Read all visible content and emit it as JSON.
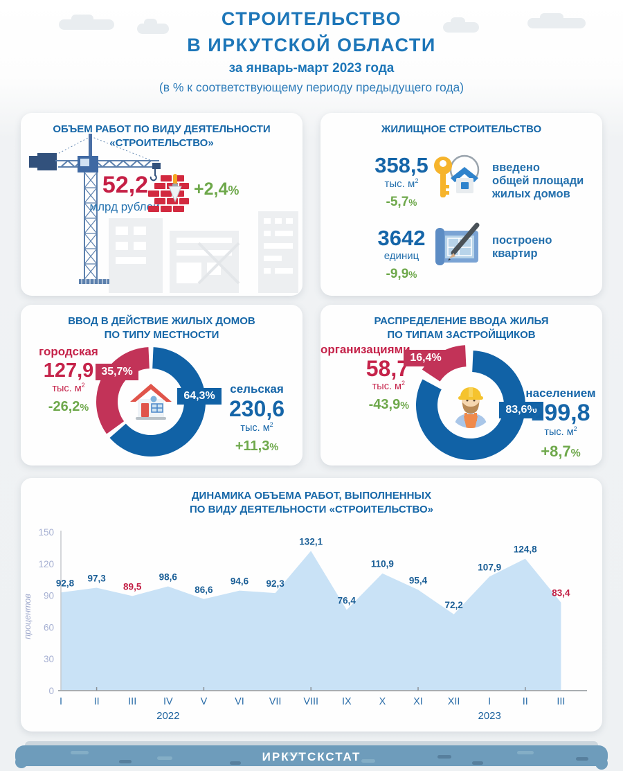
{
  "header": {
    "title_line1": "СТРОИТЕЛЬСТВО",
    "title_line2": "В ИРКУТСКОЙ ОБЛАСТИ",
    "subtitle": "за январь-март 2023 года",
    "note": "(в % к соответствующему периоду предыдущего года)"
  },
  "symbols": {
    "percent": "%"
  },
  "cards": {
    "volume": {
      "title_line1": "ОБЪЕМ РАБОТ ПО ВИДУ ДЕЯТЕЛЬНОСТИ",
      "title_line2": "«СТРОИТЕЛЬСТВО»",
      "value": "52,2",
      "unit": "млрд рублей",
      "change": "+2,4"
    },
    "housing": {
      "title": "ЖИЛИЩНОЕ СТРОИТЕЛЬСТВО",
      "rows": [
        {
          "value": "358,5",
          "unit": "тыс. м",
          "unit_sup": "2",
          "change": "-5,7",
          "label_line1": "введено",
          "label_line2": "общей площади",
          "label_line3": "жилых домов",
          "icon": "key-house-icon"
        },
        {
          "value": "3642",
          "unit": "единиц",
          "change": "-9,9",
          "label_line1": "построено",
          "label_line2": "квартир",
          "icon": "blueprint-pencil-icon"
        }
      ]
    }
  },
  "chart_data": [
    {
      "type": "pie",
      "subtype": "donut",
      "title_line1": "ВВОД В ДЕЙСТВИЕ ЖИЛЫХ ДОМОВ",
      "title_line2": "ПО ТИПУ МЕСТНОСТИ",
      "center_icon": "house-icon",
      "slices": [
        {
          "label": "городская",
          "share_pct": 35.7,
          "share_display": "35,7%",
          "value_display": "127,9",
          "unit": "тыс. м",
          "unit_sup": "2",
          "change_display": "-26,2",
          "color": "#c23358",
          "exploded": false
        },
        {
          "label": "сельская",
          "share_pct": 64.3,
          "share_display": "64,3%",
          "value_display": "230,6",
          "unit": "тыс. м",
          "unit_sup": "2",
          "change_display": "+11,3",
          "color": "#1162a6",
          "exploded": false
        }
      ]
    },
    {
      "type": "pie",
      "subtype": "donut",
      "title_line1": "РАСПРЕДЕЛЕНИЕ ВВОДА ЖИЛЬЯ",
      "title_line2": "ПО ТИПАМ ЗАСТРОЙЩИКОВ",
      "center_icon": "builder-icon",
      "slices": [
        {
          "label": "организациями",
          "share_pct": 16.4,
          "share_display": "16,4%",
          "value_display": "58,7",
          "unit": "тыс. м",
          "unit_sup": "2",
          "change_display": "-43,9",
          "color": "#c23358",
          "exploded": true
        },
        {
          "label": "населением",
          "share_pct": 83.6,
          "share_display": "83,6%",
          "value_display": "299,8",
          "unit": "тыс. м",
          "unit_sup": "2",
          "change_display": "+8,7",
          "color": "#1162a6",
          "exploded": false
        }
      ]
    },
    {
      "type": "area",
      "title_line1": "ДИНАМИКА ОБЪЕМА РАБОТ, ВЫПОЛНЕННЫХ",
      "title_line2": "ПО ВИДУ ДЕЯТЕЛЬНОСТИ «СТРОИТЕЛЬСТВО»",
      "ylabel": "процентов",
      "ylim": [
        0,
        150
      ],
      "yticks": [
        0,
        30,
        60,
        90,
        120,
        150
      ],
      "categories": [
        "I",
        "II",
        "III",
        "IV",
        "V",
        "VI",
        "VII",
        "VIII",
        "IX",
        "X",
        "XI",
        "XII",
        "I",
        "II",
        "III"
      ],
      "values": [
        92.8,
        97.3,
        89.5,
        98.6,
        86.6,
        94.6,
        92.3,
        132.1,
        76.4,
        110.9,
        95.4,
        72.2,
        107.9,
        124.8,
        83.4
      ],
      "highlight_indices": [
        2,
        14
      ],
      "year_markers": [
        {
          "label": "2022",
          "index": 3
        },
        {
          "label": "2023",
          "index": 12
        }
      ],
      "area_color": "#c9e2f6",
      "label_color": "#1a5e96",
      "highlight_label_color": "#c21f45",
      "grid": false,
      "legend": false
    }
  ],
  "colors": {
    "accent_blue": "#1d76b8",
    "value_blue": "#1565a8",
    "value_red": "#c51f45",
    "change_green": "#6ea84b",
    "donut_red": "#c23358",
    "donut_blue": "#1162a6"
  },
  "footer": {
    "label": "ИРКУТСКСТАТ"
  }
}
